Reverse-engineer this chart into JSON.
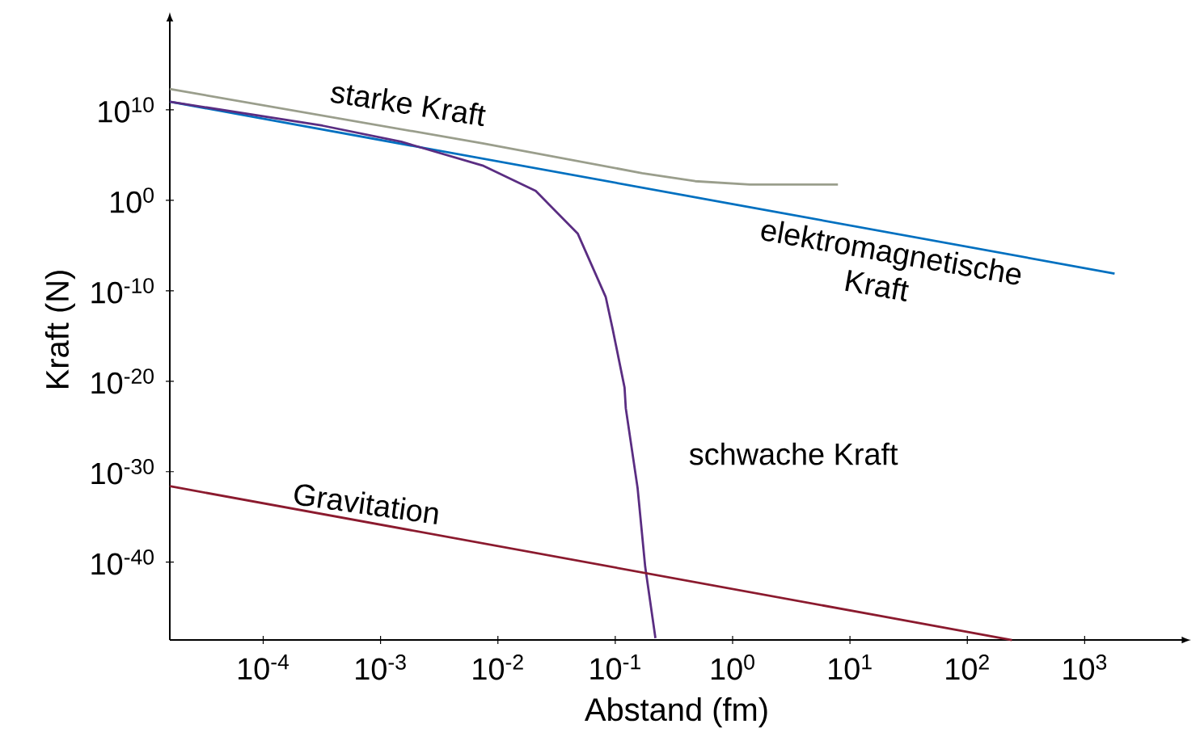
{
  "chart_data": {
    "type": "line",
    "xlabel": "Abstand (fm)",
    "ylabel": "Kraft (N)",
    "log": "xy",
    "xlim": [
      1.6e-05,
      7000.0
    ],
    "ylim": [
      2.5e-49,
      1e+20
    ],
    "xticks": [
      {
        "value": 0.0001,
        "label": "10$^{-4}$"
      },
      {
        "value": 0.001,
        "label": "10$^{-3}$"
      },
      {
        "value": 0.01,
        "label": "10$^{-2}$"
      },
      {
        "value": 0.1,
        "label": "10$^{-1}$"
      },
      {
        "value": 1,
        "label": "10$^{0}$"
      },
      {
        "value": 10,
        "label": "10$^{1}$"
      },
      {
        "value": 100,
        "label": "10$^{2}$"
      },
      {
        "value": 1000,
        "label": "10$^{3}$"
      }
    ],
    "yticks": [
      {
        "value": 1e-40,
        "label": "10$^{-40}$"
      },
      {
        "value": 1e-30,
        "label": "10$^{-30}$"
      },
      {
        "value": 1e-20,
        "label": "10$^{-20}$"
      },
      {
        "value": 1e-10,
        "label": "10$^{-10}$"
      },
      {
        "value": 1,
        "label": "10$^{0}$"
      },
      {
        "value": 10000000000.0,
        "label": "10$^{10}$"
      }
    ],
    "series": [
      {
        "name": "starke Kraft",
        "color": "#9a9e8c",
        "x": [
          1.6e-05,
          0.0074,
          0.17,
          0.48,
          1.4,
          7.9
        ],
        "values": [
          2000000000000.0,
          2000000.0,
          1000.0,
          130,
          56,
          56
        ]
      },
      {
        "name": "elektromagnetische Kraft",
        "color": "#0070c0",
        "x": [
          1.6e-05,
          1800.0
        ],
        "values": [
          80000000000.0,
          8e-09
        ]
      },
      {
        "name": "schwache Kraft",
        "color": "#5a2d82",
        "x": [
          1.6e-05,
          0.00032,
          0.0015,
          0.0074,
          0.021,
          0.048,
          0.083,
          0.095,
          0.12,
          0.123,
          0.155,
          0.18,
          0.22
        ],
        "values": [
          80000000000.0,
          180000000.0,
          3000000.0,
          7000.0,
          11,
          0.0002,
          2e-11,
          6e-15,
          2e-21,
          1e-23,
          1.6e-32,
          3e-41,
          4e-49
        ]
      },
      {
        "name": "Gravitation",
        "color": "#8b1a2e",
        "x": [
          1.6e-05,
          240.0
        ],
        "values": [
          2.5e-32,
          2.5e-49
        ]
      }
    ]
  }
}
